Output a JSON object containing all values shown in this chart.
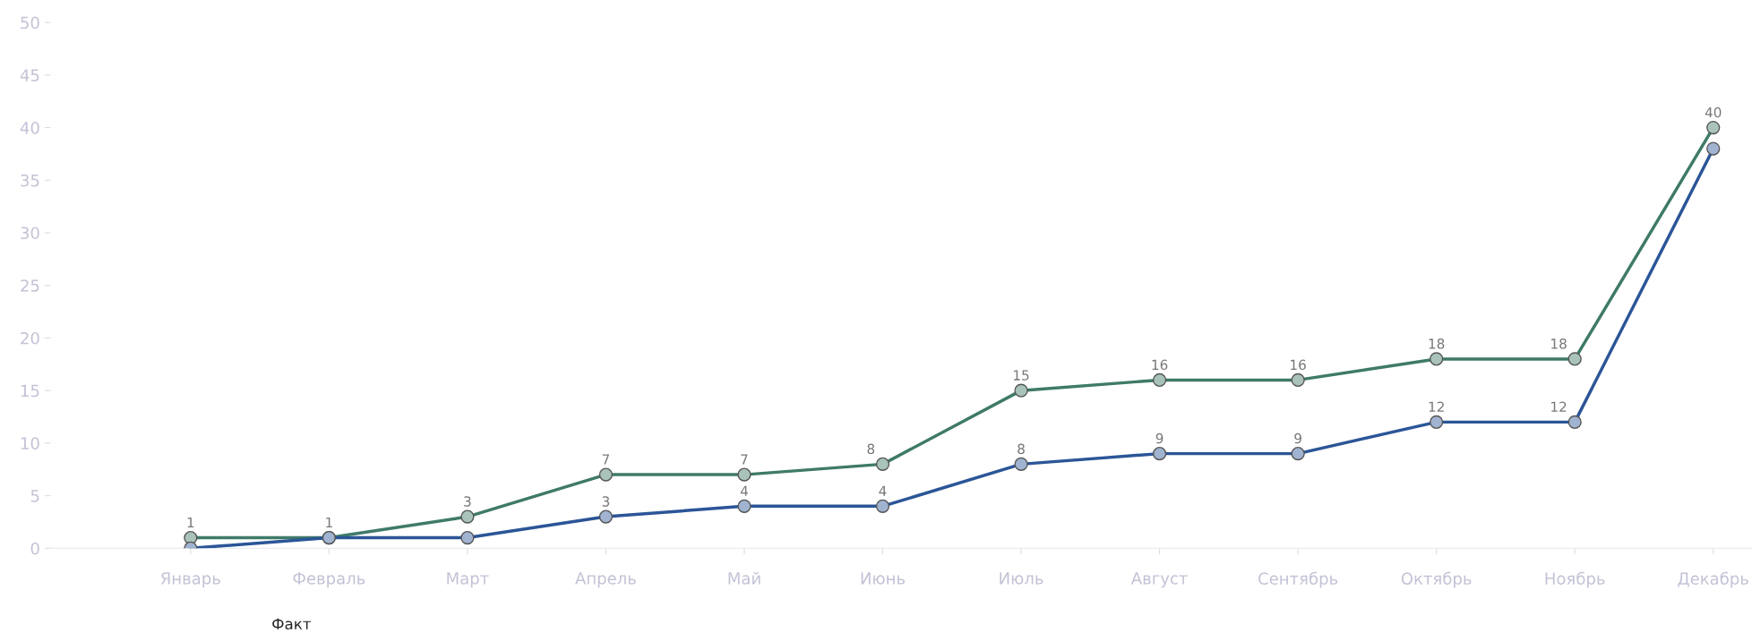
{
  "chart_data": {
    "type": "line",
    "categories": [
      "Январь",
      "Февраль",
      "Март",
      "Апрель",
      "Май",
      "Июнь",
      "Июль",
      "Август",
      "Сентябрь",
      "Октябрь",
      "Ноябрь",
      "Декабрь"
    ],
    "series": [
      {
        "color": "#3f7a68",
        "values": [
          1,
          1,
          3,
          7,
          7,
          8,
          15,
          16,
          16,
          18,
          18,
          40
        ],
        "value_labels": [
          "1",
          "1",
          "3",
          "7",
          "7",
          "8",
          "15",
          "16",
          "16",
          "18",
          "18",
          "40"
        ]
      },
      {
        "color": "#2b5597",
        "values": [
          0,
          1,
          1,
          3,
          4,
          4,
          8,
          9,
          9,
          12,
          12,
          38
        ],
        "value_labels": [
          null,
          null,
          null,
          "3",
          "4",
          "4",
          "8",
          "9",
          "9",
          "12",
          "12",
          null
        ]
      }
    ],
    "ylim": [
      0,
      50
    ],
    "yticks": [
      0,
      5,
      10,
      15,
      20,
      25,
      30,
      35,
      40,
      45,
      50
    ],
    "grid": false,
    "marker": "circle",
    "line_style": "solid",
    "annotations": [
      "Факт"
    ]
  }
}
